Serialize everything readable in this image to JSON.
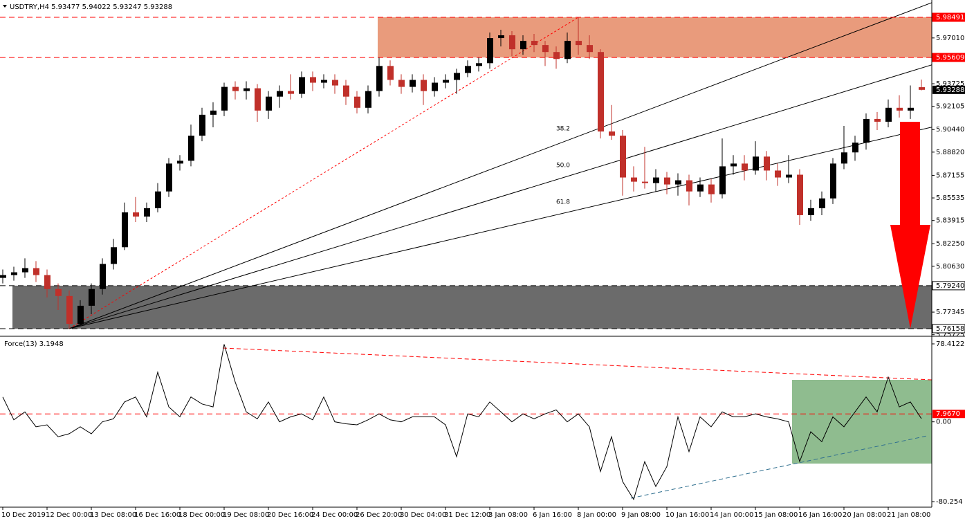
{
  "chart_data": [
    {
      "type": "candlestick",
      "title": "USDTRY,H4  5.93477 5.94022 5.93247 5.93288",
      "categories": [
        "10 Dec 2019",
        null,
        null,
        null,
        "12 Dec 00:00",
        null,
        null,
        null,
        "13 Dec 08:00",
        null,
        null,
        null,
        "16 Dec 16:00",
        null,
        null,
        null,
        "18 Dec 00:00",
        null,
        null,
        null,
        "19 Dec 08:00",
        null,
        null,
        null,
        "20 Dec 16:00",
        null,
        null,
        null,
        "24 Dec 00:00",
        null,
        null,
        null,
        "26 Dec 20:00",
        null,
        null,
        null,
        "30 Dec 04:00",
        null,
        null,
        null,
        "31 Dec 12:00",
        null,
        null,
        null,
        "3 Jan 08:00",
        null,
        null,
        null,
        "6 Jan 16:00",
        null,
        null,
        null,
        "8 Jan 00:00",
        null,
        null,
        null,
        "9 Jan 08:00",
        null,
        null,
        null,
        "10 Jan 16:00",
        null,
        null,
        null,
        "14 Jan 00:00",
        null,
        null,
        null,
        "15 Jan 08:00",
        null,
        null,
        null,
        "16 Jan 16:00",
        null,
        null,
        null,
        "20 Jan 08:00",
        null,
        null,
        null,
        "21 Jan 08:00",
        null,
        null,
        null
      ],
      "open": [
        5.798,
        5.8,
        5.802,
        5.805,
        5.8,
        5.79,
        5.785,
        5.765,
        5.778,
        5.79,
        5.808,
        5.82,
        5.845,
        5.842,
        5.848,
        5.86,
        5.88,
        5.882,
        5.9,
        5.915,
        5.918,
        5.935,
        5.932,
        5.934,
        5.918,
        5.928,
        5.932,
        5.93,
        5.942,
        5.938,
        5.94,
        5.936,
        5.928,
        5.92,
        5.932,
        5.95,
        5.94,
        5.935,
        5.94,
        5.932,
        5.938,
        5.94,
        5.945,
        5.95,
        5.952,
        5.97,
        5.972,
        5.962,
        5.968,
        5.965,
        5.96,
        5.955,
        5.968,
        5.965,
        5.96,
        5.903,
        5.9,
        5.87,
        5.867,
        5.866,
        5.87,
        5.865,
        5.868,
        5.86,
        5.865,
        5.858,
        5.878,
        5.88,
        5.875,
        5.885,
        5.875,
        5.87,
        5.872,
        5.843,
        5.848,
        5.855,
        5.88,
        5.888,
        5.895,
        5.912,
        5.91,
        5.92,
        5.918,
        5.93477
      ],
      "high": [
        5.804,
        5.806,
        5.812,
        5.81,
        5.804,
        5.794,
        5.789,
        5.782,
        5.794,
        5.812,
        5.826,
        5.852,
        5.856,
        5.852,
        5.866,
        5.884,
        5.886,
        5.908,
        5.92,
        5.924,
        5.938,
        5.939,
        5.939,
        5.937,
        5.932,
        5.936,
        5.944,
        5.946,
        5.946,
        5.944,
        5.944,
        5.94,
        5.932,
        5.936,
        5.956,
        5.954,
        5.944,
        5.944,
        5.944,
        5.942,
        5.944,
        5.948,
        5.954,
        5.956,
        5.974,
        5.976,
        5.975,
        5.972,
        5.973,
        5.968,
        5.964,
        5.974,
        5.98491,
        5.972,
        5.962,
        5.922,
        5.904,
        5.878,
        5.892,
        5.876,
        5.874,
        5.873,
        5.872,
        5.87,
        5.869,
        5.898,
        5.886,
        5.886,
        5.896,
        5.889,
        5.88,
        5.886,
        5.876,
        5.854,
        5.86,
        5.884,
        5.907,
        5.9,
        5.916,
        5.917,
        5.926,
        5.929,
        5.936,
        5.94022
      ],
      "low": [
        5.794,
        5.796,
        5.798,
        5.795,
        5.784,
        5.775,
        5.76158,
        5.764,
        5.772,
        5.786,
        5.804,
        5.818,
        5.838,
        5.838,
        5.845,
        5.856,
        5.875,
        5.878,
        5.896,
        5.906,
        5.914,
        5.926,
        5.926,
        5.91,
        5.912,
        5.92,
        5.926,
        5.927,
        5.932,
        5.934,
        5.93,
        5.922,
        5.916,
        5.916,
        5.928,
        5.936,
        5.93,
        5.931,
        5.922,
        5.928,
        5.934,
        5.93,
        5.942,
        5.946,
        5.948,
        5.964,
        5.957,
        5.958,
        5.96,
        5.95,
        5.948,
        5.952,
        5.958,
        5.955,
        5.898,
        5.897,
        5.857,
        5.86,
        5.862,
        5.86,
        5.858,
        5.857,
        5.85,
        5.856,
        5.852,
        5.855,
        5.872,
        5.868,
        5.872,
        5.868,
        5.864,
        5.866,
        5.836,
        5.839,
        5.843,
        5.851,
        5.876,
        5.882,
        5.89,
        5.904,
        5.906,
        5.913,
        5.912,
        5.93247
      ],
      "close": [
        5.8,
        5.802,
        5.805,
        5.8,
        5.79,
        5.785,
        5.765,
        5.778,
        5.79,
        5.808,
        5.82,
        5.845,
        5.842,
        5.848,
        5.86,
        5.88,
        5.882,
        5.9,
        5.915,
        5.918,
        5.935,
        5.932,
        5.934,
        5.918,
        5.928,
        5.932,
        5.93,
        5.942,
        5.938,
        5.94,
        5.936,
        5.928,
        5.92,
        5.932,
        5.95,
        5.94,
        5.935,
        5.94,
        5.932,
        5.938,
        5.94,
        5.945,
        5.95,
        5.952,
        5.97,
        5.972,
        5.962,
        5.968,
        5.965,
        5.96,
        5.955,
        5.968,
        5.965,
        5.96,
        5.903,
        5.9,
        5.87,
        5.867,
        5.866,
        5.87,
        5.865,
        5.868,
        5.86,
        5.865,
        5.858,
        5.878,
        5.88,
        5.875,
        5.885,
        5.875,
        5.87,
        5.872,
        5.843,
        5.848,
        5.855,
        5.88,
        5.888,
        5.895,
        5.912,
        5.91,
        5.92,
        5.918,
        5.92,
        5.93288
      ],
      "up_color": "#000000",
      "down_color": "#c0302a",
      "ylim": [
        5.75761,
        5.99682
      ],
      "yticks": [
        {
          "value": 5.9701,
          "label": "5.97010"
        },
        5.93725,
        5.92105,
        {
          "value": 5.9044,
          "label": "5.90440"
        },
        {
          "value": 5.8882,
          "label": "5.88820"
        },
        5.87155,
        5.85535,
        5.83915,
        {
          "value": 5.8225,
          "label": "5.82250"
        },
        {
          "value": 5.8063,
          "label": "5.80630"
        },
        5.77345,
        5.75725
      ],
      "levels": [
        5.98491,
        5.95609,
        {
          "value": 5.7924,
          "label": "5.79240"
        },
        5.76158
      ],
      "level_colors": [
        "#ff0000",
        "#ff0000",
        "#000000",
        "#000000"
      ],
      "zone_colors": [
        "#e99b7c",
        "#6b6b6b"
      ],
      "fib_levels": [
        38.2,
        {
          "value": 50,
          "label": "50.0"
        },
        61.8
      ]
    },
    {
      "type": "line",
      "title": "Force(13) 3.1948",
      "color": "#000000",
      "values": [
        25,
        2,
        10,
        -5,
        -3,
        -15,
        -12,
        -5,
        -12,
        0,
        3,
        20,
        25,
        5,
        50,
        15,
        5,
        25,
        18,
        15,
        78,
        40,
        10,
        3,
        20,
        0,
        5,
        8,
        2,
        25,
        0,
        -2,
        -3,
        2,
        8,
        2,
        0,
        5,
        5,
        5,
        -3,
        -35,
        8,
        5,
        20,
        10,
        0,
        8,
        3,
        8,
        12,
        0,
        8,
        -5,
        -50,
        -15,
        -60,
        -78,
        -40,
        -65,
        -45,
        5,
        -30,
        5,
        -5,
        10,
        5,
        5,
        8,
        5,
        3,
        0,
        -40,
        -10,
        -20,
        5,
        -5,
        10,
        25,
        10,
        45,
        15,
        20,
        3.1948
      ],
      "ylim": [
        -85.82,
        83.28
      ],
      "yticks": [
        78.4122,
        {
          "value": 0,
          "label": "0.00"
        },
        -80.254
      ],
      "level": {
        "value": 7.967,
        "label": "7.9670"
      },
      "level_color": "#ff0000"
    }
  ]
}
